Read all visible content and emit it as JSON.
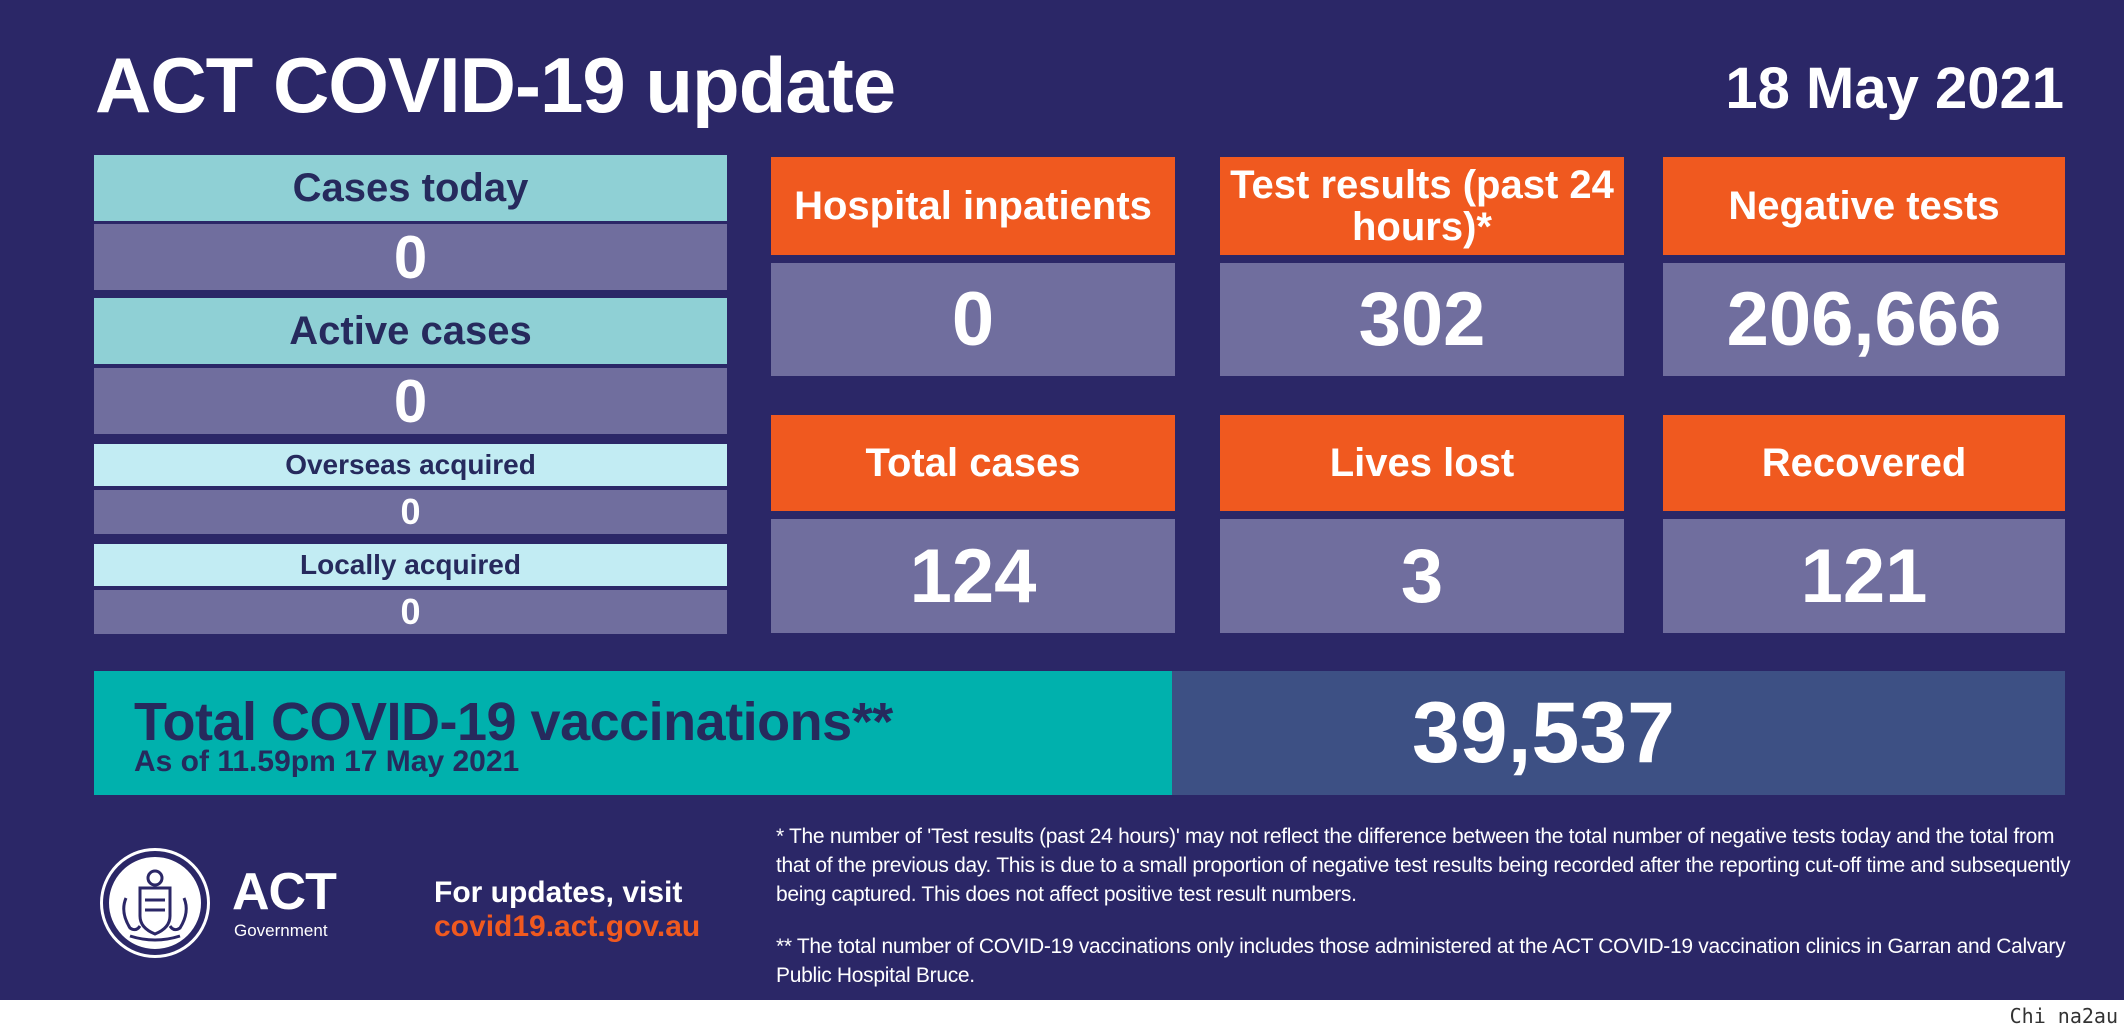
{
  "header": {
    "title": "ACT COVID-19 update",
    "date": "18 May 2021"
  },
  "left_column": {
    "cases_today": {
      "label": "Cases today",
      "value": "0"
    },
    "active_cases": {
      "label": "Active cases",
      "value": "0"
    },
    "overseas_acquired": {
      "label": "Overseas acquired",
      "value": "0"
    },
    "locally_acquired": {
      "label": "Locally acquired",
      "value": "0"
    }
  },
  "stats": {
    "hospital_inpatients": {
      "label": "Hospital inpatients",
      "value": "0"
    },
    "test_results": {
      "label": "Test results (past 24 hours)*",
      "value": "302"
    },
    "negative_tests": {
      "label": "Negative tests",
      "value": "206,666"
    },
    "total_cases": {
      "label": "Total cases",
      "value": "124"
    },
    "lives_lost": {
      "label": "Lives lost",
      "value": "3"
    },
    "recovered": {
      "label": "Recovered",
      "value": "121"
    }
  },
  "vaccinations": {
    "title": "Total COVID-19 vaccinations**",
    "subtitle": "As of 11.59pm 17 May 2021",
    "value": "39,537"
  },
  "footer": {
    "logo_text": "ACT",
    "logo_subtext": "Government",
    "updates_text": "For updates, visit",
    "updates_link": "covid19.act.gov.au",
    "note_1": "* The number of 'Test results (past 24 hours)' may not reflect the difference between the total number of negative tests today and the total from that of the previous day. This is due to a small proportion of negative test results being recorded after the reporting cut-off time and subsequently being captured. This does not affect positive test result numbers.",
    "note_2": "** The total number of COVID-19 vaccinations only includes those administered at the ACT COVID-19 vaccination clinics in Garran and Calvary Public Hospital Bruce."
  },
  "watermark": "Chi na2au",
  "colors": {
    "background": "#2b2767",
    "orange": "#f0591f",
    "teal": "#8fd0d5",
    "light_teal": "#c2ecf3",
    "value_box": "#706e9e",
    "vaccination_teal": "#00b1ad",
    "vaccination_blue": "#3d5084"
  }
}
